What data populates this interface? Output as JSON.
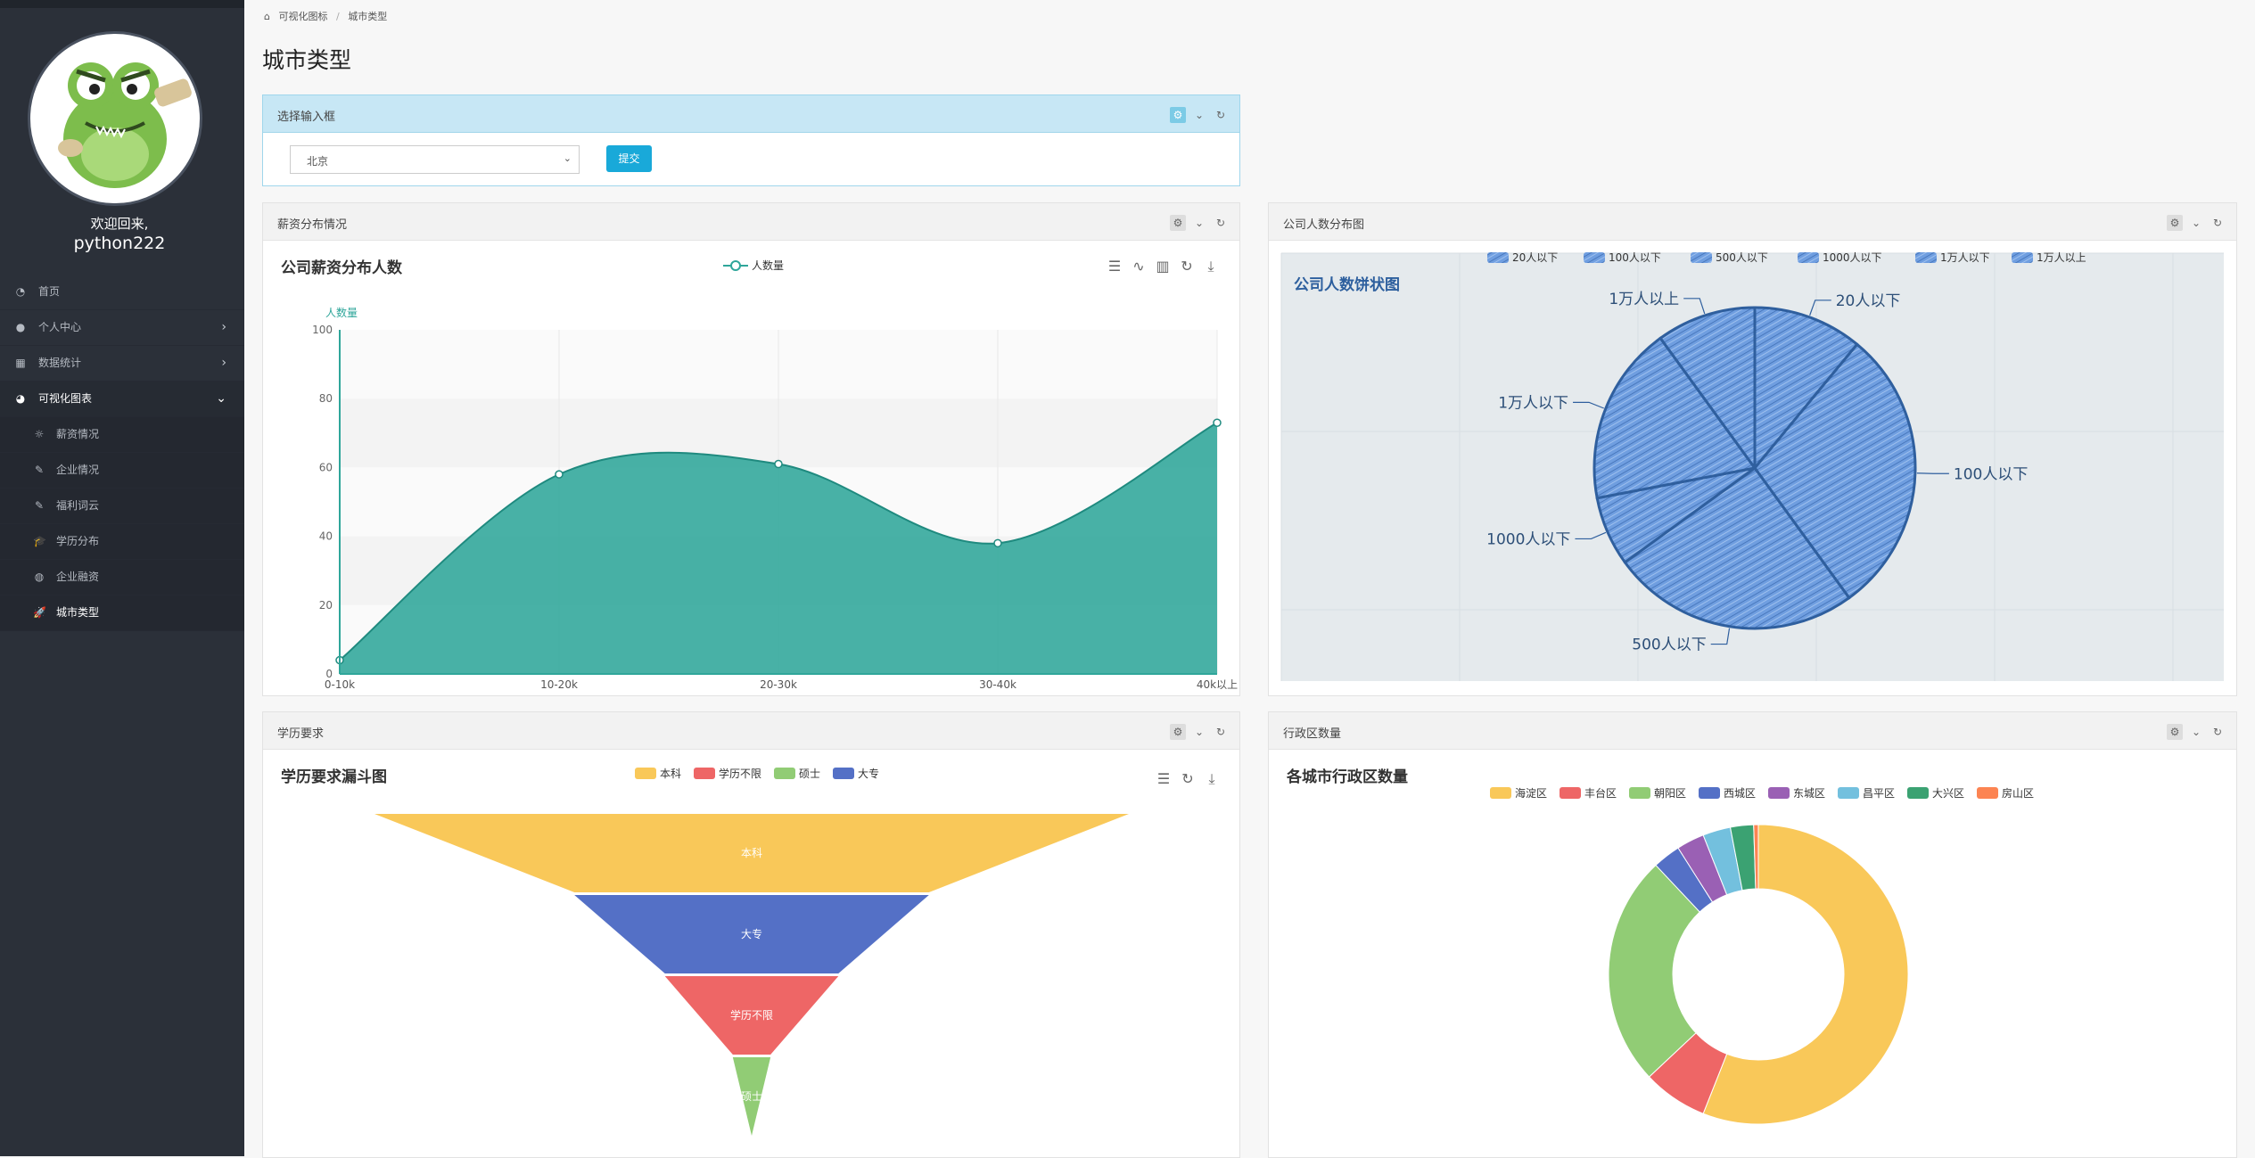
{
  "sidebar": {
    "welcome": "欢迎回来,",
    "username": "python222",
    "items": [
      {
        "label": "首页",
        "icon": "dashboard-icon",
        "glyph": "◔"
      },
      {
        "label": "个人中心",
        "icon": "user-icon",
        "glyph": "●"
      },
      {
        "label": "数据统计",
        "icon": "grid-icon",
        "glyph": "▦"
      },
      {
        "label": "可视化图表",
        "icon": "pie-chart-icon",
        "glyph": "◕"
      }
    ],
    "subitems": [
      {
        "label": "薪资情况",
        "icon": "sun-icon",
        "glyph": "☼"
      },
      {
        "label": "企业情况",
        "icon": "feather-icon",
        "glyph": "✎"
      },
      {
        "label": "福利词云",
        "icon": "feather-icon",
        "glyph": "✎"
      },
      {
        "label": "学历分布",
        "icon": "graduation-cap-icon",
        "glyph": "🎓"
      },
      {
        "label": "企业融资",
        "icon": "basketball-icon",
        "glyph": "◍"
      },
      {
        "label": "城市类型",
        "icon": "rocket-icon",
        "glyph": "🚀"
      }
    ]
  },
  "breadcrumb": {
    "home": "可视化图标",
    "current": "城市类型"
  },
  "page_title": "城市类型",
  "select_box": {
    "title": "选择输入框",
    "selected": "北京",
    "submit": "提交"
  },
  "salary_box": {
    "title": "薪资分布情况"
  },
  "company_box": {
    "title": "公司人数分布图"
  },
  "edu_box": {
    "title": "学历要求"
  },
  "district_box": {
    "title": "行政区数量"
  },
  "chart_data": [
    {
      "type": "area",
      "title": "公司薪资分布人数",
      "ylabel": "人数量",
      "legend": "人数量",
      "categories": [
        "0-10k",
        "10-20k",
        "20-30k",
        "30-40k",
        "40k以上"
      ],
      "values": [
        4,
        58,
        61,
        38,
        73
      ],
      "ylim": [
        0,
        100
      ],
      "yticks": [
        0,
        20,
        40,
        60,
        80,
        100
      ],
      "color": "#2fa69a"
    },
    {
      "type": "pie",
      "title": "公司人数饼状图",
      "labels": [
        "20人以下",
        "100人以下",
        "500人以下",
        "1000人以下",
        "1万人以下",
        "1万人以上"
      ],
      "values": [
        11,
        29,
        25,
        7,
        18,
        10
      ],
      "legend_labels": [
        "20人以下",
        "100人以下",
        "500人以下",
        "1000人以下",
        "1万人以下",
        "1万人以上"
      ],
      "color": "#5b8fd6"
    },
    {
      "type": "funnel",
      "title": "学历要求漏斗图",
      "legend": [
        "本科",
        "学历不限",
        "硕士",
        "大专"
      ],
      "labels": [
        "本科",
        "大专",
        "学历不限",
        "硕士"
      ],
      "values": [
        100,
        47,
        23,
        5
      ],
      "colors": {
        "本科": "#f9c859",
        "学历不限": "#ee6666",
        "硕士": "#91cc75",
        "大专": "#5470c6"
      }
    },
    {
      "type": "pie",
      "title": "各城市行政区数量",
      "labels": [
        "海淀区",
        "丰台区",
        "朝阳区",
        "西城区",
        "东城区",
        "昌平区",
        "大兴区",
        "房山区"
      ],
      "values": [
        56,
        7,
        25,
        3,
        3,
        3,
        2.5,
        0.5
      ],
      "colors": [
        "#f9c859",
        "#ee6666",
        "#91cc75",
        "#5470c6",
        "#9a60b4",
        "#73c0de",
        "#3ba272",
        "#fc8452"
      ]
    }
  ]
}
